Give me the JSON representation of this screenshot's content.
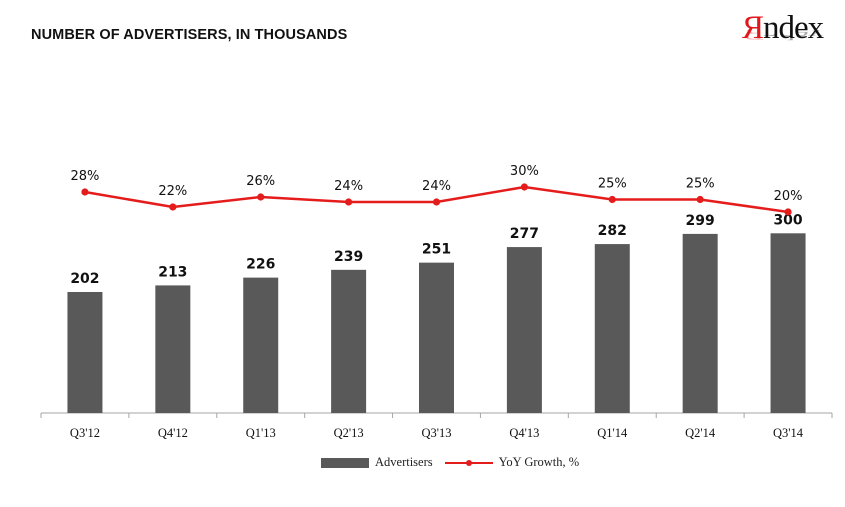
{
  "header": {
    "title": "NUMBER OF ADVERTISERS, IN THOUSANDS"
  },
  "logo": {
    "first_letter": "Я",
    "rest": "ndex",
    "icon": "yandex-logo"
  },
  "colors": {
    "bar": "#595959",
    "line": "#e51c1c",
    "axis": "#a6a6a6",
    "text": "#111111",
    "logo_red": "#e0181e"
  },
  "chart_data": {
    "type": "bar",
    "categories": [
      "Q3'12",
      "Q4'12",
      "Q1'13",
      "Q2'13",
      "Q3'13",
      "Q4'13",
      "Q1'14",
      "Q2'14",
      "Q3'14"
    ],
    "ylim": [
      0,
      450
    ],
    "grid": false,
    "legend_position": "bottom",
    "series": [
      {
        "name": "Advertisers",
        "type": "bar",
        "values": [
          202,
          213,
          226,
          239,
          251,
          277,
          282,
          299,
          300
        ],
        "labels": [
          "202",
          "213",
          "226",
          "239",
          "251",
          "277",
          "282",
          "299",
          "300"
        ]
      },
      {
        "name": "YoY Growth, %",
        "type": "line",
        "values": [
          28,
          22,
          26,
          24,
          24,
          30,
          25,
          25,
          20
        ],
        "labels": [
          "28%",
          "22%",
          "26%",
          "24%",
          "24%",
          "30%",
          "25%",
          "25%",
          "20%"
        ]
      }
    ]
  }
}
